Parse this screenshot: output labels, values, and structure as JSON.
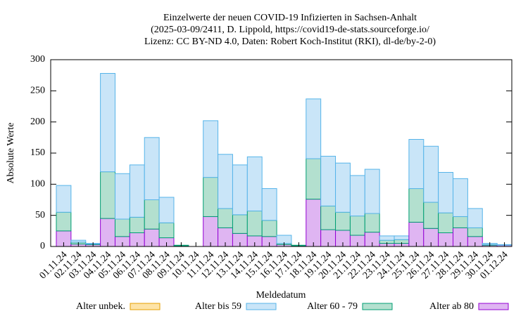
{
  "chart_data": {
    "type": "stacked_bar",
    "title": [
      "Einzelwerte der neuen COVID-19 Infizierten in Sachsen-Anhalt",
      "(2025-03-09/2411, D. Lippold, https://covid19-de-stats.sourceforge.io/",
      "Lizenz: CC BY-ND 4.0, Daten: Robert Koch-Institut (RKI), dl-de/by-2-0)"
    ],
    "x_label": "Meldedatum",
    "y_label": "Absolute Werte",
    "categories": [
      "01.11.24",
      "02.11.24",
      "03.11.24",
      "04.11.24",
      "05.11.24",
      "06.11.24",
      "07.11.24",
      "08.11.24",
      "09.11.24",
      "10.11.24",
      "11.11.24",
      "12.11.24",
      "13.11.24",
      "14.11.24",
      "15.11.24",
      "16.11.24",
      "17.11.24",
      "18.11.24",
      "19.11.24",
      "20.11.24",
      "21.11.24",
      "22.11.24",
      "23.11.24",
      "24.11.24",
      "25.11.24",
      "26.11.24",
      "27.11.24",
      "28.11.24",
      "29.11.24",
      "30.11.24",
      "01.12.24"
    ],
    "series": [
      {
        "name": "Alter unbek.",
        "color": "#e69f00",
        "fill": "#fde3a7",
        "values": [
          0,
          0,
          0,
          0,
          0,
          0,
          0,
          0,
          0,
          0,
          0,
          0,
          0,
          0,
          0,
          0,
          0,
          0,
          0,
          0,
          0,
          0,
          0,
          0,
          0,
          0,
          0,
          0,
          0,
          0,
          0
        ]
      },
      {
        "name": "Alter bis 59",
        "color": "#56b4e9",
        "fill": "#c9e5f8",
        "values": [
          43,
          3,
          1,
          158,
          73,
          84,
          100,
          41,
          0,
          0,
          91,
          87,
          80,
          87,
          51,
          13,
          0,
          96,
          80,
          79,
          65,
          71,
          7,
          6,
          79,
          90,
          65,
          61,
          31,
          2,
          1
        ]
      },
      {
        "name": "Alter 60 - 79",
        "color": "#009e73",
        "fill": "#b3e0cf",
        "values": [
          30,
          3,
          1,
          75,
          28,
          25,
          47,
          24,
          1,
          0,
          63,
          31,
          30,
          40,
          26,
          2,
          1,
          65,
          38,
          29,
          31,
          30,
          5,
          6,
          54,
          42,
          32,
          18,
          14,
          1,
          0
        ]
      },
      {
        "name": "Alter ab 80",
        "color": "#9400d3",
        "fill": "#dfb5f2",
        "values": [
          25,
          4,
          3,
          45,
          16,
          22,
          28,
          14,
          1,
          0,
          48,
          30,
          21,
          17,
          16,
          3,
          1,
          76,
          27,
          26,
          18,
          23,
          5,
          5,
          39,
          29,
          22,
          30,
          16,
          2,
          2
        ]
      }
    ],
    "ylim": [
      0,
      300
    ],
    "yticks": [
      0,
      50,
      100,
      150,
      200,
      250,
      300
    ]
  }
}
